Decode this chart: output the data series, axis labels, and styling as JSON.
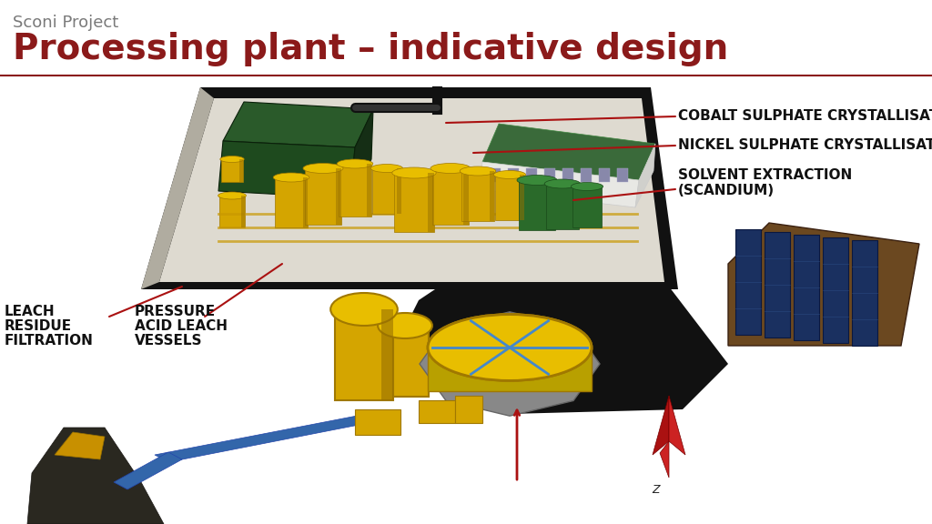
{
  "background_color": "#ffffff",
  "title": "Processing plant – indicative design",
  "subtitle": "Sconi Project",
  "subtitle_color": "#7a7a7a",
  "title_color": "#8b1a1a",
  "title_fontsize": 28,
  "subtitle_fontsize": 13,
  "separator_color": "#8b1a1a",
  "ann_color": "#111111",
  "ann_fs": 11,
  "arrow_color": "#aa1111",
  "label_cobalt": "COBALT SULPHATE CRYSTALLISAT",
  "label_nickel": "NICKEL SULPHATE CRYSTALLISATI",
  "label_solvent_line1": "SOLVENT EXTRACTION",
  "label_solvent_line2": "(SCANDIUM)",
  "label_leach_line1": "LEACH",
  "label_leach_line2": "RESIDUE",
  "label_leach_line3": "FILTRATION",
  "label_pressure_line1": "PRESSURE",
  "label_pressure_line2": "ACID LEACH",
  "label_pressure_line3": "VESSELS",
  "platform_color": "#c8c4b8",
  "road_color": "#111111",
  "inner_color": "#dedad0",
  "green_bldg_color": "#1e4a1e",
  "green_bldg_top": "#2a5a2a",
  "white_bldg_color": "#e8e8e4",
  "white_bldg_roof": "#3a6a3a",
  "yellow": "#d4a500",
  "yellow_top": "#e8be00",
  "yellow_dark": "#a07800",
  "solar_base": "#6b4820",
  "solar_panel": "#1a3060",
  "ore_color": "#3a3a30",
  "conv_color": "#4466aa",
  "red_nav": "#aa1111"
}
